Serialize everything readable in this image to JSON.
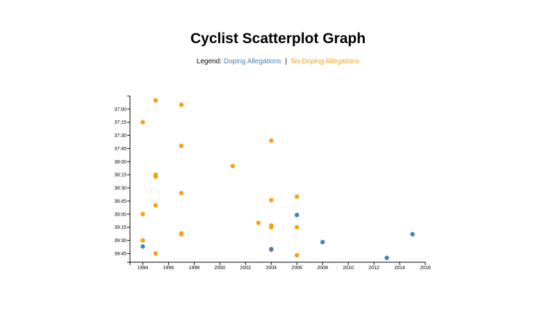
{
  "page": {
    "title": "Cyclist Scatterplot Graph"
  },
  "legend": {
    "label": "Legend:",
    "doping_text": "Doping Allegations",
    "separator": "|",
    "no_doping_text": "No Doping Allegations"
  },
  "colors": {
    "doping": "#4682b4",
    "no_doping": "#f5a20f",
    "axis": "#000000"
  },
  "chart_data": {
    "type": "scatter",
    "title": "Cyclist Scatterplot Graph",
    "xlabel": "",
    "ylabel": "",
    "xlim": [
      1993,
      2016
    ],
    "ylim_seconds": [
      2205,
      2395
    ],
    "x_ticks": [
      "1994",
      "1996",
      "1998",
      "2000",
      "2002",
      "2004",
      "2006",
      "2008",
      "2010",
      "2012",
      "2014",
      "2016"
    ],
    "y_ticks": [
      "37:00",
      "37:15",
      "37:30",
      "37:45",
      "38:00",
      "38:15",
      "38:30",
      "38:45",
      "39:00",
      "39:15",
      "39:30",
      "39:45"
    ],
    "series": [
      {
        "name": "No Doping Allegations",
        "points": [
          {
            "year": 1995,
            "time": "36:50"
          },
          {
            "year": 1997,
            "time": "36:55"
          },
          {
            "year": 1994,
            "time": "37:15"
          },
          {
            "year": 1997,
            "time": "37:42"
          },
          {
            "year": 2004,
            "time": "37:36"
          },
          {
            "year": 2001,
            "time": "38:05"
          },
          {
            "year": 1995,
            "time": "38:15"
          },
          {
            "year": 1995,
            "time": "38:17"
          },
          {
            "year": 1997,
            "time": "38:36"
          },
          {
            "year": 2006,
            "time": "38:40"
          },
          {
            "year": 2004,
            "time": "38:44"
          },
          {
            "year": 1995,
            "time": "38:50"
          },
          {
            "year": 1994,
            "time": "39:00"
          },
          {
            "year": 2003,
            "time": "39:10"
          },
          {
            "year": 2004,
            "time": "39:13"
          },
          {
            "year": 2004,
            "time": "39:15"
          },
          {
            "year": 2006,
            "time": "39:15"
          },
          {
            "year": 1997,
            "time": "39:22"
          },
          {
            "year": 1997,
            "time": "39:23"
          },
          {
            "year": 1994,
            "time": "39:30"
          },
          {
            "year": 2004,
            "time": "39:41"
          },
          {
            "year": 1995,
            "time": "39:45"
          },
          {
            "year": 2006,
            "time": "39:47"
          }
        ]
      },
      {
        "name": "Doping Allegations",
        "points": [
          {
            "year": 1994,
            "time": "39:37"
          },
          {
            "year": 2006,
            "time": "39:01"
          },
          {
            "year": 2015,
            "time": "39:23"
          },
          {
            "year": 2008,
            "time": "39:32"
          },
          {
            "year": 2004,
            "time": "39:40"
          },
          {
            "year": 2013,
            "time": "39:50"
          }
        ]
      }
    ]
  }
}
